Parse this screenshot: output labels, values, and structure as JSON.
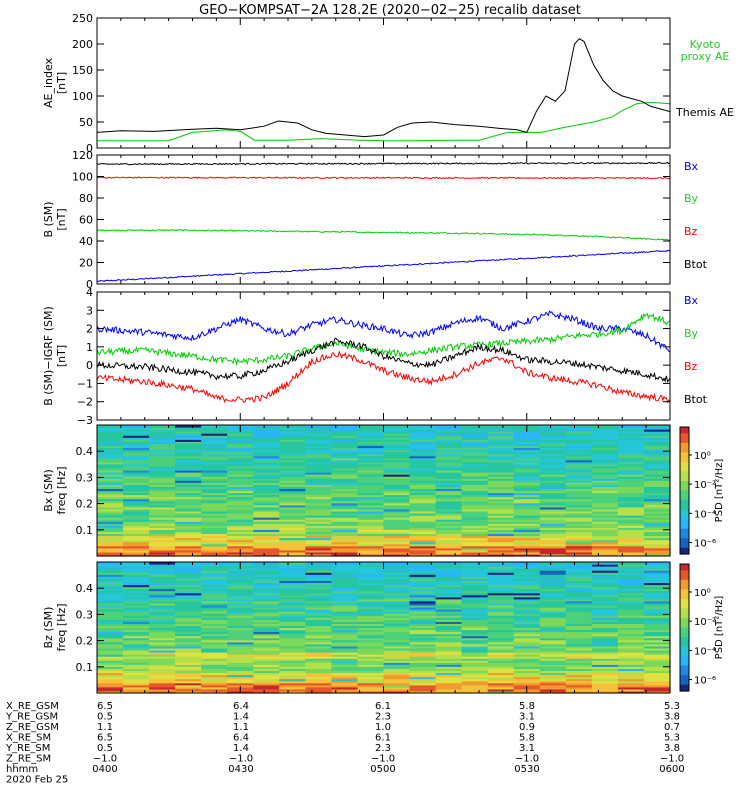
{
  "title": "GEO−KOMPSAT−2A 128.2E (2020−02−25) recalib dataset",
  "chart_data": [
    {
      "id": "ae",
      "type": "line",
      "ylabel": "AE_index",
      "yunit": "[nT]",
      "ylim": [
        0,
        250
      ],
      "yticks": [
        0,
        50,
        100,
        150,
        200,
        250
      ],
      "x_range": [
        0,
        120
      ],
      "series": [
        {
          "name": "Kyoto proxy AE",
          "label_lines": [
            "Kyoto",
            "proxy AE"
          ],
          "color": "#00cc00",
          "x": [
            0,
            15,
            20,
            27,
            30,
            33,
            40,
            47,
            55,
            60,
            66,
            75,
            80,
            86,
            93,
            98,
            104,
            108,
            110,
            113,
            116,
            120
          ],
          "y": [
            14,
            14,
            30,
            35,
            32,
            15,
            15,
            18,
            15,
            14,
            14,
            15,
            15,
            30,
            30,
            40,
            50,
            60,
            72,
            85,
            88,
            85
          ]
        },
        {
          "name": "Themis AE",
          "label_lines": [
            "Themis AE"
          ],
          "color": "#000000",
          "x": [
            0,
            5,
            12,
            20,
            25,
            30,
            35,
            38,
            42,
            45,
            48,
            52,
            56,
            60,
            63,
            66,
            70,
            75,
            80,
            84,
            88,
            90,
            92,
            94,
            96,
            98,
            100,
            101,
            102,
            104,
            106,
            108,
            110,
            112,
            114,
            116,
            118,
            120
          ],
          "y": [
            30,
            33,
            32,
            36,
            38,
            35,
            42,
            52,
            48,
            35,
            28,
            25,
            22,
            25,
            40,
            48,
            50,
            45,
            42,
            38,
            35,
            30,
            70,
            100,
            90,
            110,
            200,
            210,
            205,
            160,
            130,
            110,
            100,
            95,
            90,
            80,
            75,
            70
          ]
        }
      ]
    },
    {
      "id": "btot",
      "type": "line",
      "ylabel": "B (SM)",
      "yunit": "[nT]",
      "ylim": [
        0,
        120
      ],
      "yticks": [
        0,
        20,
        40,
        60,
        80,
        100,
        120
      ],
      "x_range": [
        0,
        120
      ],
      "series": [
        {
          "name": "Bx",
          "color": "#0000ff",
          "x": [
            0,
            120
          ],
          "y": [
            2.5,
            31
          ]
        },
        {
          "name": "By",
          "color": "#00cc00",
          "x": [
            0,
            20,
            40,
            60,
            80,
            100,
            110,
            120
          ],
          "y": [
            50,
            50,
            49,
            48,
            47,
            45,
            43,
            41
          ]
        },
        {
          "name": "Bz",
          "color": "#ff0000",
          "x": [
            0,
            120
          ],
          "y": [
            99,
            98.5
          ]
        },
        {
          "name": "Btot",
          "color": "#000000",
          "x": [
            0,
            120
          ],
          "y": [
            111.5,
            112.5
          ]
        }
      ]
    },
    {
      "id": "bdelta",
      "type": "line",
      "ylabel": "B (SM)−IGRF (SM)",
      "yunit": "[nT]",
      "ylim": [
        -3,
        4
      ],
      "yticks": [
        -3,
        -2,
        -1,
        0,
        1,
        2,
        3,
        4
      ],
      "x_range": [
        0,
        120
      ],
      "series": [
        {
          "name": "Bx",
          "color": "#0000ff",
          "x": [
            0,
            10,
            20,
            25,
            30,
            35,
            40,
            45,
            50,
            55,
            60,
            65,
            70,
            75,
            80,
            85,
            90,
            95,
            100,
            105,
            110,
            115,
            120
          ],
          "y": [
            2.0,
            1.8,
            1.5,
            2.0,
            2.5,
            2.0,
            1.7,
            2.2,
            2.5,
            2.2,
            2.0,
            1.6,
            1.8,
            2.3,
            2.6,
            2.0,
            2.4,
            2.8,
            2.5,
            2.0,
            2.0,
            1.6,
            0.8
          ]
        },
        {
          "name": "By",
          "color": "#00cc00",
          "x": [
            0,
            10,
            20,
            25,
            30,
            35,
            40,
            45,
            50,
            55,
            60,
            65,
            70,
            75,
            80,
            85,
            90,
            95,
            100,
            105,
            110,
            115,
            120
          ],
          "y": [
            0.7,
            0.8,
            0.5,
            0.3,
            0.2,
            0.3,
            0.5,
            0.9,
            1.2,
            0.9,
            0.7,
            0.6,
            0.8,
            1.0,
            1.1,
            1.2,
            1.3,
            1.4,
            1.6,
            1.7,
            1.9,
            2.8,
            2.3
          ]
        },
        {
          "name": "Bz",
          "color": "#ff0000",
          "x": [
            0,
            10,
            20,
            25,
            30,
            35,
            40,
            45,
            50,
            55,
            60,
            65,
            70,
            75,
            80,
            85,
            90,
            95,
            100,
            105,
            110,
            115,
            120
          ],
          "y": [
            -0.7,
            -0.9,
            -1.3,
            -1.8,
            -1.9,
            -1.8,
            -1.0,
            0.2,
            0.6,
            0.3,
            -0.3,
            -0.7,
            -0.9,
            -0.5,
            0.1,
            0.4,
            -0.4,
            -0.7,
            -0.9,
            -1.1,
            -1.5,
            -1.7,
            -1.9
          ]
        },
        {
          "name": "Btot",
          "color": "#000000",
          "x": [
            0,
            10,
            20,
            25,
            30,
            35,
            40,
            45,
            50,
            55,
            60,
            65,
            70,
            75,
            80,
            85,
            90,
            95,
            100,
            105,
            110,
            115,
            120
          ],
          "y": [
            0.0,
            -0.1,
            -0.4,
            -0.6,
            -0.6,
            -0.3,
            0.2,
            0.8,
            1.3,
            1.1,
            0.5,
            0.1,
            0.0,
            0.5,
            1.0,
            0.8,
            0.3,
            0.2,
            0.1,
            -0.1,
            -0.3,
            -0.5,
            -0.8
          ]
        }
      ]
    },
    {
      "id": "spec_bx",
      "type": "heatmap",
      "ylabel": "Bx (SM)",
      "ylabel2": "freq [Hz]",
      "ylim": [
        0,
        0.5
      ],
      "yticks": [
        0.1,
        0.2,
        0.3,
        0.4
      ],
      "colorbar": {
        "label": "PSD [nT²/Hz]",
        "ticks": [
          "10⁰",
          "10⁻²",
          "10⁻⁴",
          "10⁻⁶"
        ]
      }
    },
    {
      "id": "spec_bz",
      "type": "heatmap",
      "ylabel": "Bz (SM)",
      "ylabel2": "freq [Hz]",
      "ylim": [
        0,
        0.5
      ],
      "yticks": [
        0.1,
        0.2,
        0.3,
        0.4
      ],
      "colorbar": {
        "label": "PSD [nT²/Hz]",
        "ticks": [
          "10⁰",
          "10⁻²",
          "10⁻⁴",
          "10⁻⁶"
        ]
      }
    }
  ],
  "orbit_table": {
    "rows": [
      {
        "label": "X_RE_GSM",
        "values": [
          "6.5",
          "6.4",
          "6.1",
          "5.8",
          "5.3"
        ]
      },
      {
        "label": "Y_RE_GSM",
        "values": [
          "0.5",
          "1.4",
          "2.3",
          "3.1",
          "3.8"
        ]
      },
      {
        "label": "Z_RE_GSM",
        "values": [
          "1.1",
          "1.1",
          "1.0",
          "0.9",
          "0.7"
        ]
      },
      {
        "label": "X_RE_SM",
        "values": [
          "6.5",
          "6.4",
          "6.1",
          "5.8",
          "5.3"
        ]
      },
      {
        "label": "Y_RE_SM",
        "values": [
          "0.5",
          "1.4",
          "2.3",
          "3.1",
          "3.8"
        ]
      },
      {
        "label": "Z_RE_SM",
        "values": [
          "−1.0",
          "−1.0",
          "−1.0",
          "−1.0",
          "−1.0"
        ]
      },
      {
        "label": "hhmm",
        "values": [
          "0400",
          "0430",
          "0500",
          "0530",
          "0600"
        ]
      }
    ],
    "date": "2020 Feb 25"
  }
}
